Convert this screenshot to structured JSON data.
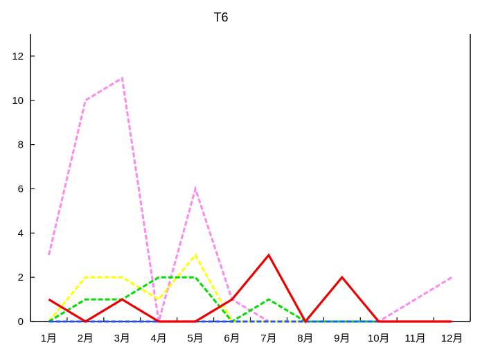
{
  "chart_data": {
    "type": "line",
    "title": "T6",
    "xlabel": "",
    "ylabel": "",
    "categories": [
      "1月",
      "2月",
      "3月",
      "4月",
      "5月",
      "6月",
      "7月",
      "8月",
      "9月",
      "10月",
      "11月",
      "12月"
    ],
    "ylim": [
      0,
      13
    ],
    "yticks": [
      "0",
      "2",
      "4",
      "6",
      "8",
      "10",
      "12"
    ],
    "grid": false,
    "series": [
      {
        "color": "#ff88ee",
        "dashed": true,
        "values": [
          3,
          10,
          11,
          0,
          6,
          1,
          0,
          0,
          0,
          0,
          1,
          2
        ]
      },
      {
        "color": "#ffff00",
        "dashed": true,
        "values": [
          0,
          2,
          2,
          1,
          3,
          0,
          0,
          0,
          0,
          0,
          0,
          0
        ]
      },
      {
        "color": "#00dd00",
        "dashed": true,
        "values": [
          0,
          1,
          1,
          2,
          2,
          0,
          1,
          0,
          0,
          0,
          0,
          0
        ]
      },
      {
        "color": "#2255ff",
        "dashed": true,
        "values": [
          0,
          0,
          0,
          0,
          0,
          0,
          0,
          0,
          0,
          0,
          0,
          0
        ]
      },
      {
        "color": "#ee0000",
        "dashed": false,
        "values": [
          1,
          0,
          1,
          0,
          0,
          1,
          3,
          0,
          2,
          0,
          0,
          0
        ]
      }
    ]
  }
}
